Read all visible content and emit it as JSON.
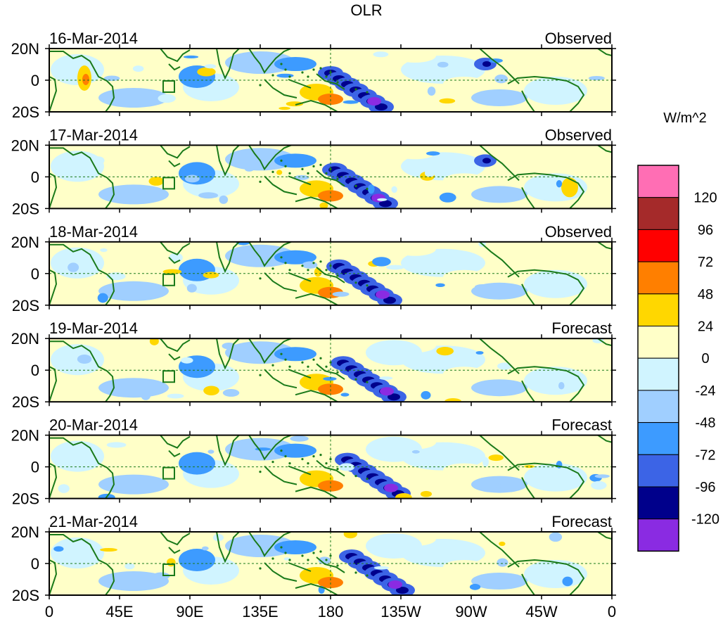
{
  "title": "OLR",
  "units": "W/m^2",
  "colors": {
    "coast": "#1a7a1a",
    "border": "#000000",
    "ref_line": "#1a7a1a"
  },
  "chart_data": {
    "type": "heatmap",
    "title": "OLR",
    "x_ticks": [
      "0",
      "45E",
      "90E",
      "135E",
      "180",
      "135W",
      "90W",
      "45W",
      "0"
    ],
    "y_ticks": [
      "20N",
      "0",
      "20S"
    ],
    "xlim_deg_east": [
      0,
      360
    ],
    "ylim_deg": [
      -20,
      20
    ],
    "panels": [
      {
        "date": "16-Mar-2014",
        "kind": "Observed"
      },
      {
        "date": "17-Mar-2014",
        "kind": "Observed"
      },
      {
        "date": "18-Mar-2014",
        "kind": "Observed"
      },
      {
        "date": "19-Mar-2014",
        "kind": "Forecast"
      },
      {
        "date": "20-Mar-2014",
        "kind": "Forecast"
      },
      {
        "date": "21-Mar-2014",
        "kind": "Forecast"
      }
    ],
    "colorbar": {
      "label": "W/m^2",
      "bins": [
        {
          "color": "#ff6eb4",
          "label": ""
        },
        {
          "color": "#a52a2a",
          "label": "120"
        },
        {
          "color": "#ff0000",
          "label": "96"
        },
        {
          "color": "#ff7f00",
          "label": "72"
        },
        {
          "color": "#ffd700",
          "label": "48"
        },
        {
          "color": "#ffffc8",
          "label": "24"
        },
        {
          "color": "#d0f4ff",
          "label": "0"
        },
        {
          "color": "#a0cfff",
          "label": "-24"
        },
        {
          "color": "#3d9bff",
          "label": "-48"
        },
        {
          "color": "#3c64e6",
          "label": "-72"
        },
        {
          "color": "#00008b",
          "label": "-96"
        },
        {
          "color": "#8a2be2",
          "label": "-120"
        }
      ]
    }
  }
}
